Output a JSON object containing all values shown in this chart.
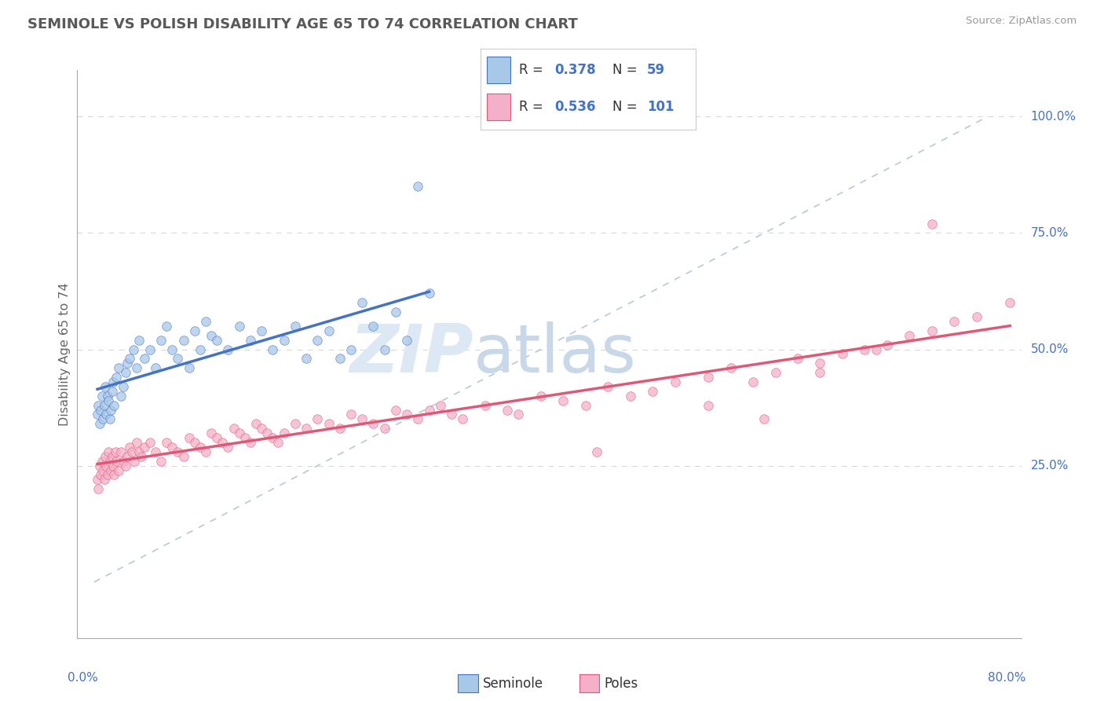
{
  "title": "SEMINOLE VS POLISH DISABILITY AGE 65 TO 74 CORRELATION CHART",
  "source": "Source: ZipAtlas.com",
  "ylabel": "Disability Age 65 to 74",
  "legend_labels": [
    "Seminole",
    "Poles"
  ],
  "seminole_R": "0.378",
  "seminole_N": "59",
  "poles_R": "0.536",
  "poles_N": "101",
  "seminole_color": "#a8c8e8",
  "poles_color": "#f4b0c8",
  "seminole_line_color": "#4472c4",
  "poles_line_color": "#e05878",
  "ref_line_color": "#b8c8d8",
  "legend_text_color": "#4472c4",
  "title_color": "#595959",
  "watermark_color": "#dce8f4",
  "background_color": "#ffffff",
  "xmin": 0.0,
  "xmax": 80.0,
  "ymin": 0.0,
  "ymax": 100.0,
  "seminole_x": [
    0.3,
    0.4,
    0.5,
    0.6,
    0.7,
    0.8,
    0.9,
    1.0,
    1.1,
    1.2,
    1.3,
    1.4,
    1.5,
    1.6,
    1.7,
    1.8,
    2.0,
    2.2,
    2.4,
    2.6,
    2.8,
    3.0,
    3.2,
    3.5,
    3.8,
    4.0,
    4.5,
    5.0,
    5.5,
    6.0,
    6.5,
    7.0,
    7.5,
    8.0,
    8.5,
    9.0,
    9.5,
    10.0,
    10.5,
    11.0,
    12.0,
    13.0,
    14.0,
    15.0,
    16.0,
    17.0,
    18.0,
    19.0,
    20.0,
    21.0,
    22.0,
    23.0,
    24.0,
    25.0,
    26.0,
    27.0,
    28.0,
    29.0,
    30.0
  ],
  "seminole_y": [
    36,
    38,
    34,
    37,
    40,
    35,
    38,
    42,
    36,
    40,
    39,
    35,
    37,
    41,
    43,
    38,
    44,
    46,
    40,
    42,
    45,
    47,
    48,
    50,
    46,
    52,
    48,
    50,
    46,
    52,
    55,
    50,
    48,
    52,
    46,
    54,
    50,
    56,
    53,
    52,
    50,
    55,
    52,
    54,
    50,
    52,
    55,
    48,
    52,
    54,
    48,
    50,
    60,
    55,
    50,
    58,
    52,
    85,
    62
  ],
  "poles_x": [
    0.3,
    0.4,
    0.5,
    0.6,
    0.7,
    0.8,
    0.9,
    1.0,
    1.1,
    1.2,
    1.3,
    1.4,
    1.5,
    1.6,
    1.7,
    1.8,
    1.9,
    2.0,
    2.2,
    2.4,
    2.6,
    2.8,
    3.0,
    3.2,
    3.4,
    3.6,
    3.8,
    4.0,
    4.2,
    4.5,
    5.0,
    5.5,
    6.0,
    6.5,
    7.0,
    7.5,
    8.0,
    8.5,
    9.0,
    9.5,
    10.0,
    10.5,
    11.0,
    11.5,
    12.0,
    12.5,
    13.0,
    13.5,
    14.0,
    14.5,
    15.0,
    15.5,
    16.0,
    16.5,
    17.0,
    18.0,
    19.0,
    20.0,
    21.0,
    22.0,
    23.0,
    24.0,
    25.0,
    26.0,
    27.0,
    28.0,
    29.0,
    30.0,
    31.0,
    32.0,
    33.0,
    35.0,
    37.0,
    38.0,
    40.0,
    42.0,
    44.0,
    46.0,
    48.0,
    50.0,
    52.0,
    55.0,
    57.0,
    59.0,
    61.0,
    63.0,
    65.0,
    67.0,
    69.0,
    71.0,
    73.0,
    75.0,
    77.0,
    79.0,
    82.0,
    60.0,
    45.0,
    55.0,
    65.0,
    70.0,
    75.0
  ],
  "poles_y": [
    22,
    20,
    25,
    23,
    26,
    24,
    22,
    27,
    25,
    23,
    28,
    26,
    24,
    27,
    25,
    23,
    28,
    26,
    24,
    28,
    26,
    25,
    27,
    29,
    28,
    26,
    30,
    28,
    27,
    29,
    30,
    28,
    26,
    30,
    29,
    28,
    27,
    31,
    30,
    29,
    28,
    32,
    31,
    30,
    29,
    33,
    32,
    31,
    30,
    34,
    33,
    32,
    31,
    30,
    32,
    34,
    33,
    35,
    34,
    33,
    36,
    35,
    34,
    33,
    37,
    36,
    35,
    37,
    38,
    36,
    35,
    38,
    37,
    36,
    40,
    39,
    38,
    42,
    40,
    41,
    43,
    44,
    46,
    43,
    45,
    48,
    47,
    49,
    50,
    51,
    53,
    54,
    56,
    57,
    60,
    35,
    28,
    38,
    45,
    50,
    77
  ]
}
